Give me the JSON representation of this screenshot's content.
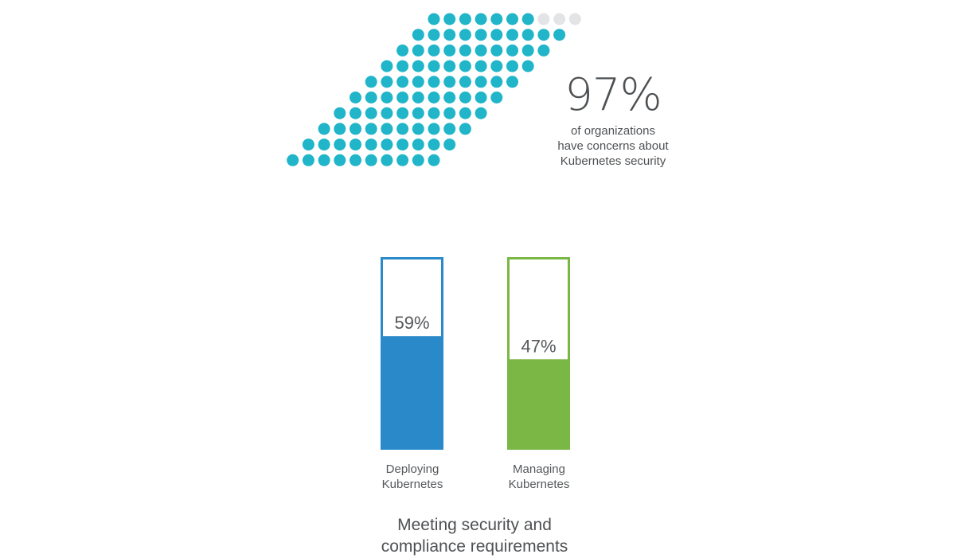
{
  "headline_stat": {
    "value": "97%",
    "caption_lines": [
      "of organizations",
      "have concerns about",
      "Kubernetes security"
    ]
  },
  "colors": {
    "dot_filled": "#20b5c8",
    "dot_empty": "#e3e4e5",
    "bar_blue": "#2a8ac9",
    "bar_green": "#7ab744",
    "text": "#55585b"
  },
  "chart_data": [
    {
      "type": "waffle",
      "total_units": 100,
      "filled_units": 97,
      "value_label": "97%"
    },
    {
      "type": "bar",
      "categories": [
        "Deploying Kubernetes",
        "Managing Kubernetes"
      ],
      "values": [
        59,
        47
      ],
      "value_labels": [
        "59%",
        "47%"
      ],
      "ylim": [
        0,
        100
      ],
      "category_label_lines": [
        [
          "Deploying",
          "Kubernetes"
        ],
        [
          "Managing",
          "Kubernetes"
        ]
      ],
      "title_lines": [
        "Meeting security and",
        "compliance requirements"
      ]
    }
  ]
}
